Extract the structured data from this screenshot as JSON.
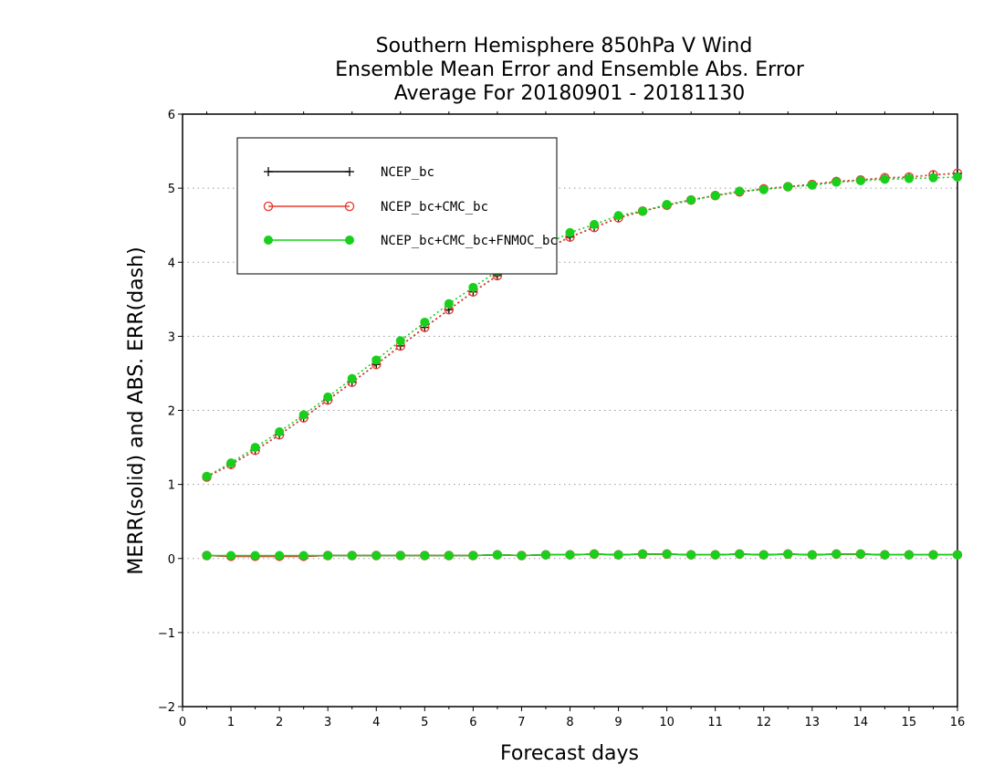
{
  "chart_data": {
    "type": "line",
    "title_lines": [
      "Southern Hemisphere 850hPa V Wind",
      "Ensemble Mean Error and Ensemble Abs. Error",
      "Average For 20180901 - 20181130"
    ],
    "xlabel": "Forecast days",
    "ylabel": "MERR(solid) and ABS. ERR(dash)",
    "xlim": [
      0,
      16
    ],
    "ylim": [
      -2,
      6
    ],
    "x_ticks": [
      "0",
      "1",
      "2",
      "3",
      "4",
      "5",
      "6",
      "7",
      "8",
      "9",
      "10",
      "11",
      "12",
      "13",
      "14",
      "15",
      "16"
    ],
    "y_ticks": [
      "-2",
      "-1",
      "0",
      "1",
      "2",
      "3",
      "4",
      "5",
      "6"
    ],
    "grid": "horizontal dotted",
    "legend_position": "top-left",
    "x": [
      0.5,
      1,
      1.5,
      2,
      2.5,
      3,
      3.5,
      4,
      4.5,
      5,
      5.5,
      6,
      6.5,
      7,
      7.5,
      8,
      8.5,
      9,
      9.5,
      10,
      10.5,
      11,
      11.5,
      12,
      12.5,
      13,
      13.5,
      14,
      14.5,
      15,
      15.5,
      16
    ],
    "series": [
      {
        "name": "NCEP_bc",
        "color": "#000000",
        "marker": "plus",
        "merr": [
          0.04,
          0.03,
          0.03,
          0.03,
          0.03,
          0.04,
          0.04,
          0.04,
          0.04,
          0.04,
          0.04,
          0.04,
          0.05,
          0.04,
          0.05,
          0.05,
          0.06,
          0.05,
          0.06,
          0.06,
          0.05,
          0.05,
          0.06,
          0.05,
          0.06,
          0.05,
          0.06,
          0.06,
          0.05,
          0.05,
          0.05,
          0.05
        ],
        "abs_err": [
          1.1,
          1.27,
          1.46,
          1.67,
          1.9,
          2.14,
          2.38,
          2.62,
          2.87,
          3.12,
          3.36,
          3.6,
          3.82,
          4.0,
          4.18,
          4.34,
          4.47,
          4.6,
          4.69,
          4.77,
          4.84,
          4.9,
          4.95,
          4.99,
          5.02,
          5.05,
          5.09,
          5.11,
          5.14,
          5.15,
          5.18,
          5.2
        ]
      },
      {
        "name": "NCEP_bc+CMC_bc",
        "color": "#e8392f",
        "marker": "open-circle",
        "merr": [
          0.04,
          0.03,
          0.03,
          0.03,
          0.03,
          0.04,
          0.04,
          0.04,
          0.04,
          0.04,
          0.04,
          0.04,
          0.05,
          0.04,
          0.05,
          0.05,
          0.06,
          0.05,
          0.06,
          0.06,
          0.05,
          0.05,
          0.06,
          0.05,
          0.06,
          0.05,
          0.06,
          0.06,
          0.05,
          0.05,
          0.05,
          0.05
        ],
        "abs_err": [
          1.1,
          1.27,
          1.46,
          1.67,
          1.9,
          2.14,
          2.38,
          2.62,
          2.87,
          3.12,
          3.36,
          3.6,
          3.82,
          4.0,
          4.18,
          4.34,
          4.47,
          4.6,
          4.69,
          4.77,
          4.84,
          4.9,
          4.95,
          4.99,
          5.02,
          5.05,
          5.09,
          5.11,
          5.14,
          5.15,
          5.18,
          5.2
        ]
      },
      {
        "name": "NCEP_bc+CMC_bc+FNMOC_bc",
        "color": "#18d01c",
        "marker": "filled-circle",
        "merr": [
          0.04,
          0.04,
          0.04,
          0.04,
          0.04,
          0.04,
          0.04,
          0.04,
          0.04,
          0.04,
          0.04,
          0.04,
          0.05,
          0.04,
          0.05,
          0.05,
          0.06,
          0.05,
          0.06,
          0.06,
          0.05,
          0.05,
          0.06,
          0.05,
          0.06,
          0.05,
          0.06,
          0.06,
          0.05,
          0.05,
          0.05,
          0.05
        ],
        "abs_err": [
          1.11,
          1.29,
          1.5,
          1.71,
          1.94,
          2.18,
          2.43,
          2.68,
          2.94,
          3.19,
          3.44,
          3.66,
          3.88,
          4.06,
          4.24,
          4.4,
          4.51,
          4.63,
          4.69,
          4.78,
          4.84,
          4.9,
          4.96,
          4.98,
          5.02,
          5.04,
          5.08,
          5.1,
          5.12,
          5.13,
          5.14,
          5.15
        ]
      }
    ]
  }
}
